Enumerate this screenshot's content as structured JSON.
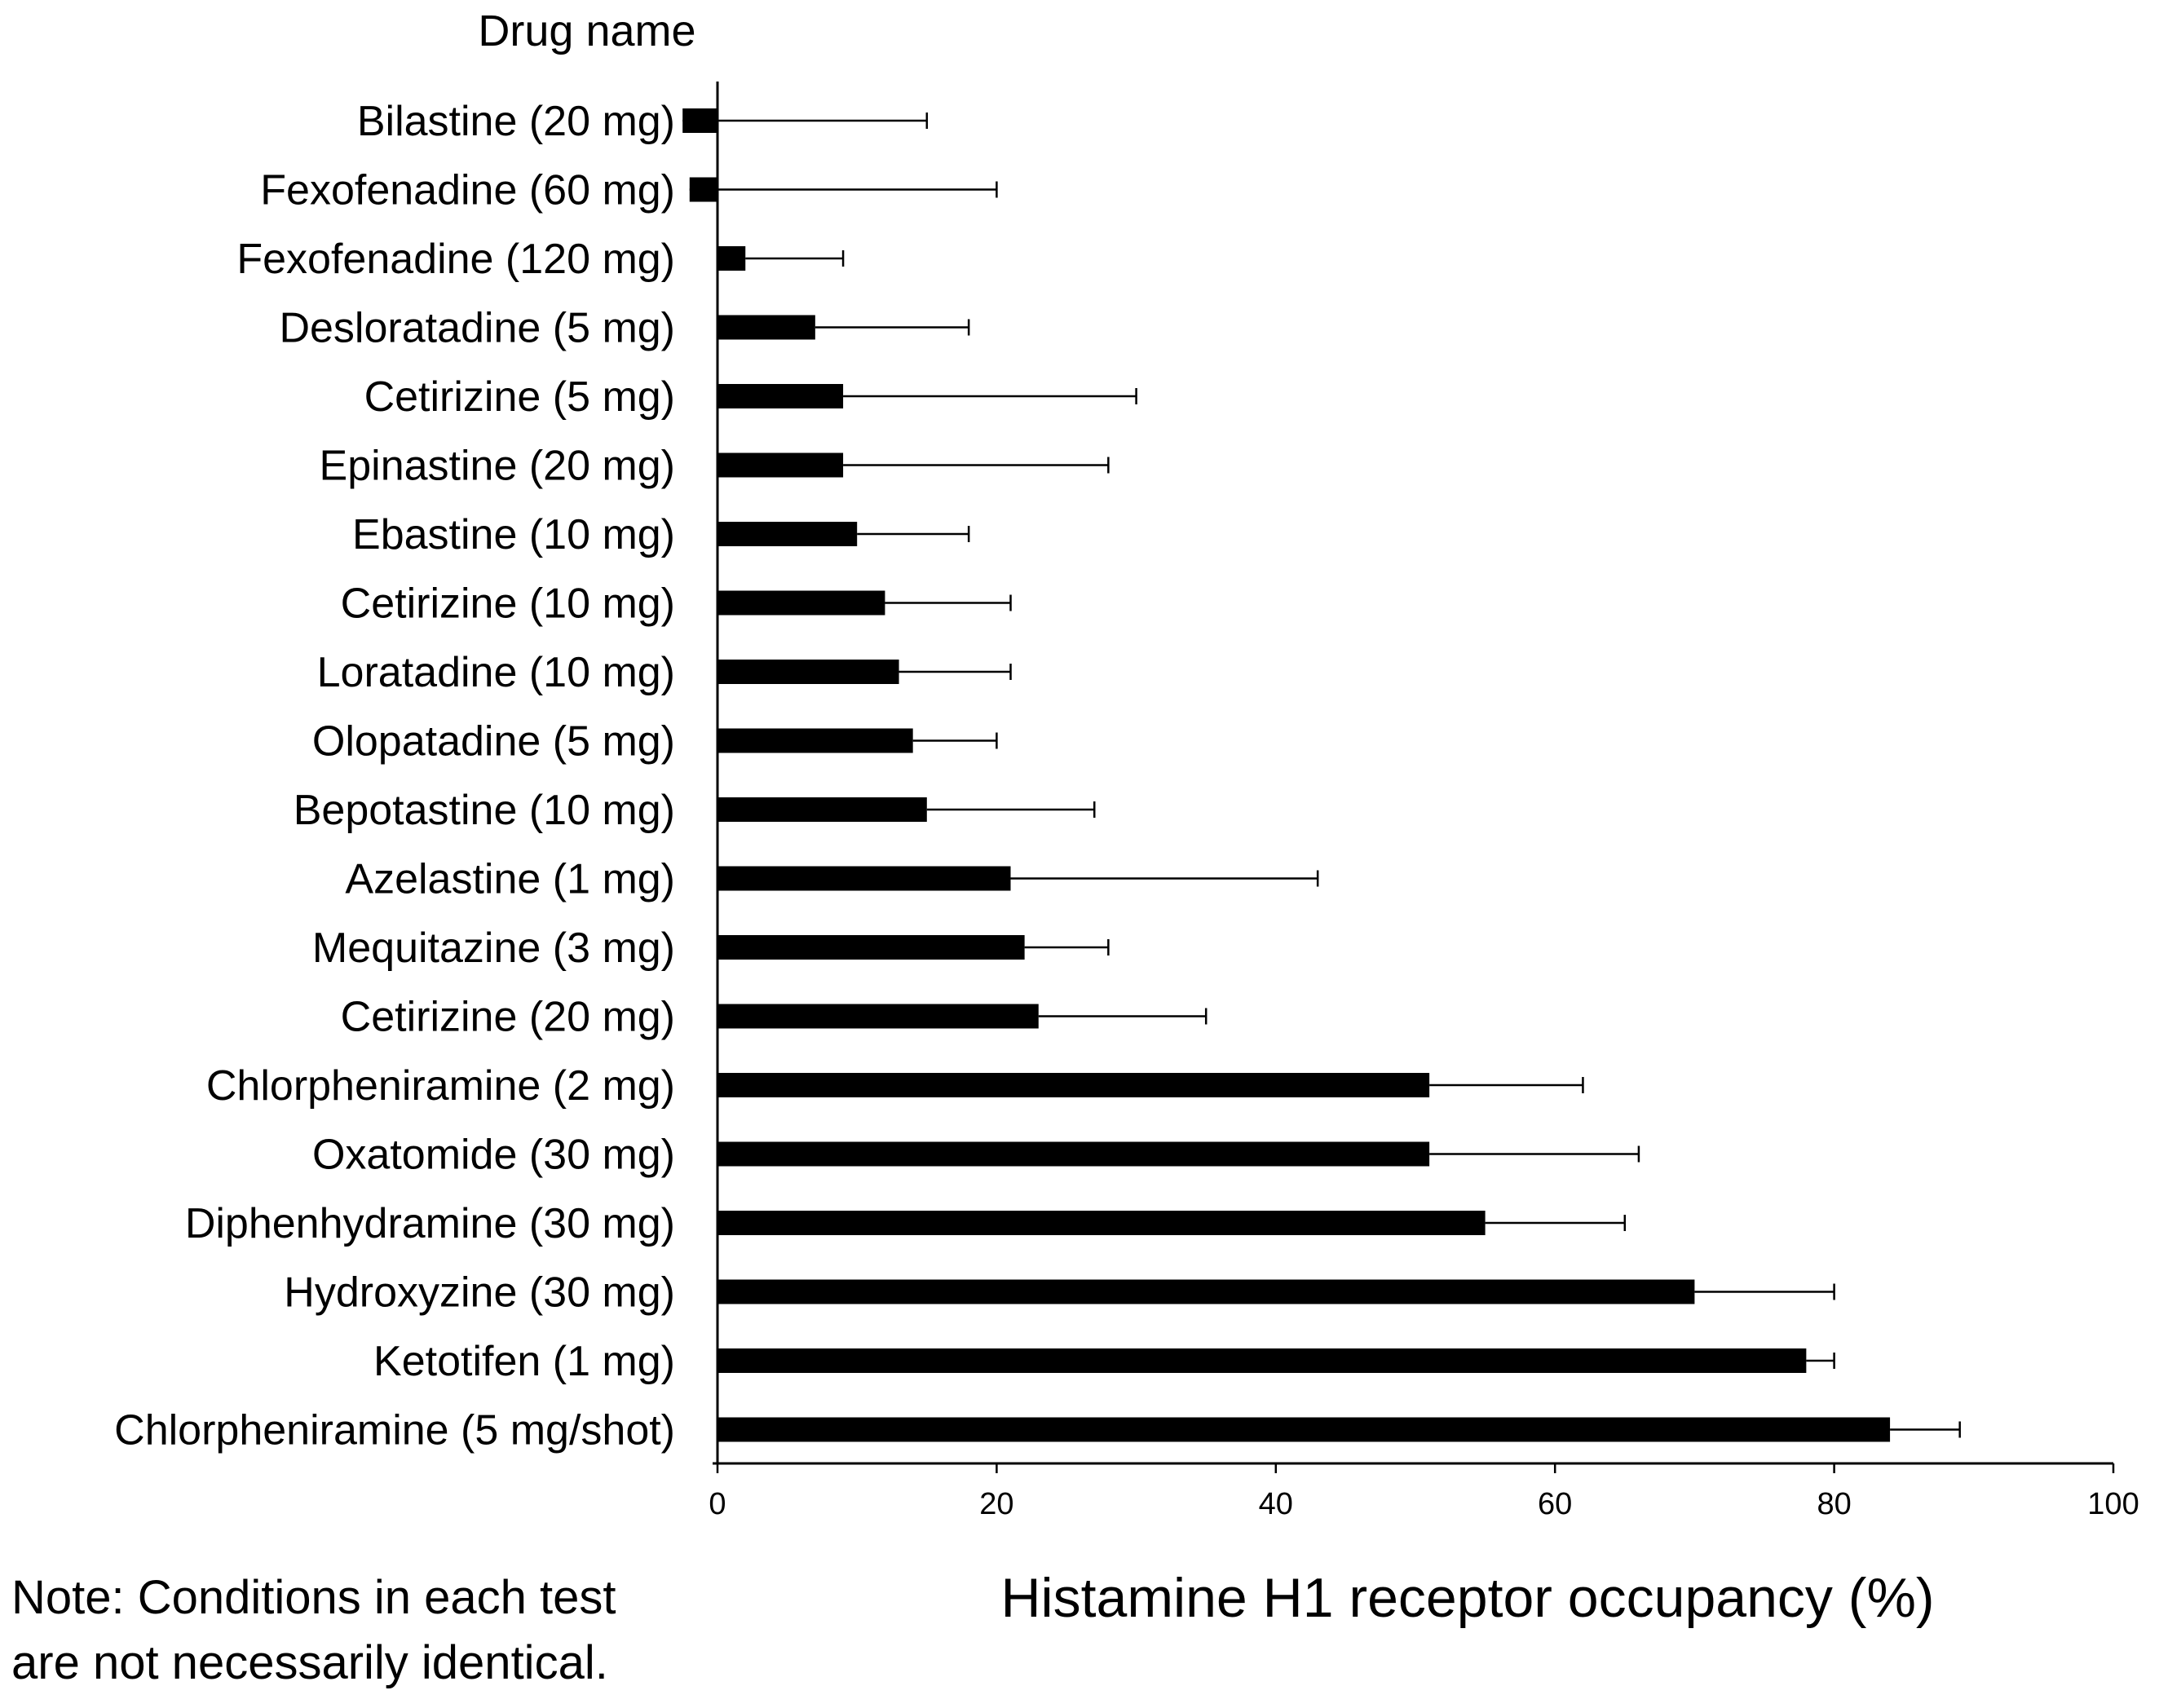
{
  "chart_data": {
    "type": "bar",
    "orientation": "horizontal",
    "title": "",
    "ycategory_header": "Drug name",
    "xlabel": "Histamine H1 receptor occupancy (%)",
    "ylabel": "Drug name",
    "xlim": [
      0,
      100
    ],
    "xticks": [
      0,
      20,
      40,
      60,
      80,
      100
    ],
    "grid": false,
    "legend": "none",
    "bar_color": "#000000",
    "categories": [
      "Bilastine (20 mg)",
      "Fexofenadine (60 mg)",
      "Fexofenadine (120 mg)",
      "Desloratadine (5 mg)",
      "Cetirizine (5 mg)",
      "Epinastine (20 mg)",
      "Ebastine (10 mg)",
      "Cetirizine (10 mg)",
      "Loratadine (10 mg)",
      "Olopatadine (5 mg)",
      "Bepotastine (10 mg)",
      "Azelastine (1 mg)",
      "Mequitazine (3 mg)",
      "Cetirizine (20 mg)",
      "Chlorpheniramine (2 mg)",
      "Oxatomide (30 mg)",
      "Diphenhydramine (30 mg)",
      "Hydroxyzine (30 mg)",
      "Ketotifen (1 mg)",
      "Chlorpheniramine (5 mg/shot)"
    ],
    "values": [
      -2.5,
      -2,
      2,
      7,
      9,
      9,
      10,
      12,
      13,
      14,
      15,
      21,
      22,
      23,
      51,
      51,
      55,
      70,
      78,
      84
    ],
    "error_upper": [
      15,
      20,
      9,
      18,
      30,
      28,
      18,
      21,
      21,
      20,
      27,
      43,
      28,
      35,
      62,
      66,
      65,
      80,
      80,
      89
    ]
  },
  "note": {
    "line1": "Note: Conditions in each test",
    "line2": "are not necessarily identical."
  }
}
